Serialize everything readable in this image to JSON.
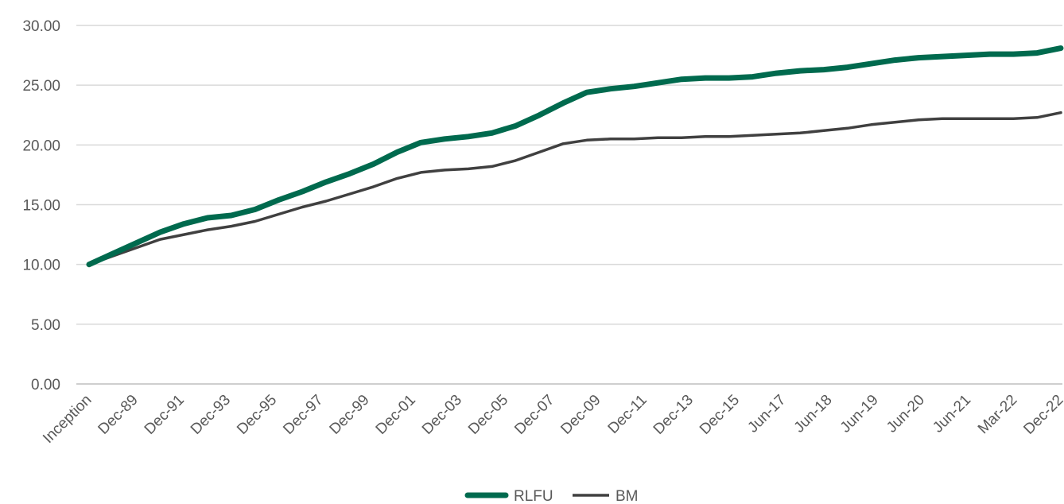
{
  "chart_data": {
    "type": "line",
    "title": "",
    "xlabel": "",
    "ylabel": "",
    "ylim": [
      0,
      30
    ],
    "yticks": [
      "0.00",
      "5.00",
      "10.00",
      "15.00",
      "20.00",
      "25.00",
      "30.00"
    ],
    "grid": true,
    "legend_position": "bottom",
    "x_tick_labels": [
      "Inception",
      "Dec-89",
      "Dec-91",
      "Dec-93",
      "Dec-95",
      "Dec-97",
      "Dec-99",
      "Dec-01",
      "Dec-03",
      "Dec-05",
      "Dec-07",
      "Dec-09",
      "Dec-11",
      "Dec-13",
      "Dec-15",
      "Jun-17",
      "Jun-18",
      "Jun-19",
      "Jun-20",
      "Jun-21",
      "Mar-22",
      "Dec-22"
    ],
    "series": [
      {
        "name": "RLFU",
        "color": "#006a4e",
        "values": [
          10.0,
          10.9,
          11.8,
          12.7,
          13.4,
          13.9,
          14.1,
          14.6,
          15.4,
          16.1,
          16.9,
          17.6,
          18.4,
          19.4,
          20.2,
          20.5,
          20.7,
          21.0,
          21.6,
          22.5,
          23.5,
          24.4,
          24.7,
          24.9,
          25.2,
          25.5,
          25.6,
          25.6,
          25.7,
          26.0,
          26.2,
          26.3,
          26.5,
          26.8,
          27.1,
          27.3,
          27.4,
          27.5,
          27.6,
          27.6,
          27.7,
          28.1
        ]
      },
      {
        "name": "BM",
        "color": "#404040",
        "values": [
          10.0,
          10.7,
          11.4,
          12.1,
          12.5,
          12.9,
          13.2,
          13.6,
          14.2,
          14.8,
          15.3,
          15.9,
          16.5,
          17.2,
          17.7,
          17.9,
          18.0,
          18.2,
          18.7,
          19.4,
          20.1,
          20.4,
          20.5,
          20.5,
          20.6,
          20.6,
          20.7,
          20.7,
          20.8,
          20.9,
          21.0,
          21.2,
          21.4,
          21.7,
          21.9,
          22.1,
          22.2,
          22.2,
          22.2,
          22.2,
          22.3,
          22.7
        ]
      }
    ]
  }
}
